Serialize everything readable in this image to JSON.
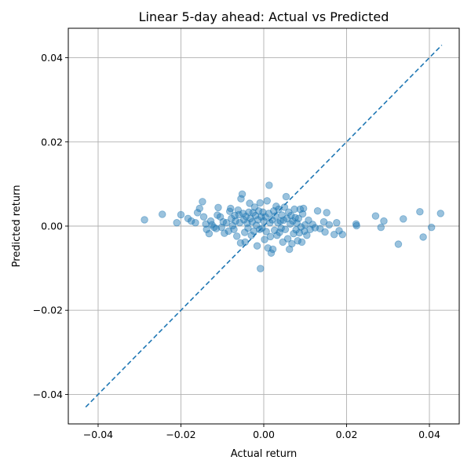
{
  "chart_data": {
    "type": "scatter",
    "title": "Linear 5-day ahead: Actual vs Predicted",
    "xlabel": "Actual return",
    "ylabel": "Predicted return",
    "xlim": [
      -0.0472,
      0.0472
    ],
    "ylim": [
      -0.047,
      0.047
    ],
    "xticks": [
      -0.04,
      -0.02,
      0.0,
      0.02,
      0.04
    ],
    "yticks": [
      -0.04,
      -0.02,
      0.0,
      0.02,
      0.04
    ],
    "xtick_labels": [
      "−0.04",
      "−0.02",
      "0.00",
      "0.02",
      "0.04"
    ],
    "ytick_labels": [
      "−0.04",
      "−0.02",
      "0.00",
      "0.02",
      "0.04"
    ],
    "grid": true,
    "point_color": "#1f77b4",
    "point_alpha": 0.45,
    "reference_line": {
      "style": "dashed",
      "color": "#1f77b4",
      "from": [
        -0.043,
        -0.043
      ],
      "to": [
        0.043,
        0.043
      ]
    },
    "series": [
      {
        "points": [
          [
            -0.0288,
            0.0015
          ],
          [
            -0.0245,
            0.0028
          ],
          [
            -0.021,
            0.0008
          ],
          [
            -0.02,
            0.0027
          ],
          [
            -0.0183,
            0.0018
          ],
          [
            -0.0175,
            0.0012
          ],
          [
            -0.0165,
            0.0008
          ],
          [
            -0.016,
            0.0032
          ],
          [
            -0.0155,
            0.0042
          ],
          [
            -0.0148,
            0.0058
          ],
          [
            -0.0145,
            0.0022
          ],
          [
            -0.014,
            0.0005
          ],
          [
            -0.0138,
            -0.0008
          ],
          [
            -0.0132,
            -0.0018
          ],
          [
            -0.0128,
            0.0012
          ],
          [
            -0.0125,
            0.0003
          ],
          [
            -0.012,
            -0.0003
          ],
          [
            -0.0115,
            -0.0006
          ],
          [
            -0.0112,
            0.0026
          ],
          [
            -0.011,
            0.0044
          ],
          [
            -0.0105,
            0.0022
          ],
          [
            -0.0102,
            -0.0003
          ],
          [
            -0.0098,
            0.001
          ],
          [
            -0.0095,
            -0.0017
          ],
          [
            -0.009,
            0.0008
          ],
          [
            -0.0085,
            -0.0012
          ],
          [
            -0.0082,
            0.0035
          ],
          [
            -0.008,
            0.0042
          ],
          [
            -0.0078,
            0.0018
          ],
          [
            -0.0075,
            0.0001
          ],
          [
            -0.0072,
            -0.0008
          ],
          [
            -0.007,
            0.0025
          ],
          [
            -0.0068,
            0.0012
          ],
          [
            -0.0065,
            -0.0024
          ],
          [
            -0.0062,
            0.0038
          ],
          [
            -0.006,
            0.0027
          ],
          [
            -0.0058,
            0.0008
          ],
          [
            -0.0056,
            -0.004
          ],
          [
            -0.0055,
            0.0065
          ],
          [
            -0.0052,
            0.0076
          ],
          [
            -0.005,
            0.003
          ],
          [
            -0.0048,
            0.0015
          ],
          [
            -0.0046,
            -0.0015
          ],
          [
            -0.0045,
            -0.0038
          ],
          [
            -0.0043,
            0.0023
          ],
          [
            -0.004,
            0.0007
          ],
          [
            -0.0038,
            -0.0005
          ],
          [
            -0.0036,
            0.0033
          ],
          [
            -0.0034,
            0.0054
          ],
          [
            -0.0032,
            0.0018
          ],
          [
            -0.003,
            -0.0022
          ],
          [
            -0.0028,
            0.001
          ],
          [
            -0.0026,
            0.0032
          ],
          [
            -0.0024,
            -0.0012
          ],
          [
            -0.0022,
            0.0045
          ],
          [
            -0.002,
            0.0025
          ],
          [
            -0.0018,
            0.0002
          ],
          [
            -0.0016,
            -0.0047
          ],
          [
            -0.0014,
            0.0015
          ],
          [
            -0.0012,
            0.0036
          ],
          [
            -0.001,
            -0.0008
          ],
          [
            -0.0009,
            0.0055
          ],
          [
            -0.0008,
            -0.0101
          ],
          [
            -0.0006,
            0.0022
          ],
          [
            -0.0004,
            -0.0005
          ],
          [
            -0.0002,
            0.0033
          ],
          [
            0.0,
            0.0012
          ],
          [
            0.0002,
            -0.0032
          ],
          [
            0.0004,
            0.0022
          ],
          [
            0.0006,
            -0.0013
          ],
          [
            0.0008,
            0.006
          ],
          [
            0.001,
            -0.0052
          ],
          [
            0.0012,
            0.003
          ],
          [
            0.0013,
            0.0097
          ],
          [
            0.0015,
            0.0008
          ],
          [
            0.0016,
            -0.0025
          ],
          [
            0.0018,
            -0.0064
          ],
          [
            0.002,
            0.0015
          ],
          [
            0.0022,
            -0.0055
          ],
          [
            0.0024,
            0.0036
          ],
          [
            0.0026,
            -0.001
          ],
          [
            0.0028,
            0.0024
          ],
          [
            0.003,
            0.0047
          ],
          [
            0.0032,
            -0.0022
          ],
          [
            0.0034,
            0.0008
          ],
          [
            0.0036,
            0.004
          ],
          [
            0.0038,
            -0.0015
          ],
          [
            0.004,
            0.0012
          ],
          [
            0.0042,
            -0.0005
          ],
          [
            0.0044,
            0.0026
          ],
          [
            0.0046,
            -0.0038
          ],
          [
            0.0048,
            0.0014
          ],
          [
            0.005,
            0.0045
          ],
          [
            0.0052,
            -0.0008
          ],
          [
            0.0054,
            0.007
          ],
          [
            0.0056,
            0.0018
          ],
          [
            0.0058,
            -0.003
          ],
          [
            0.006,
            0.0033
          ],
          [
            0.0062,
            -0.0055
          ],
          [
            0.0064,
            0.0005
          ],
          [
            0.0066,
            0.0025
          ],
          [
            0.0068,
            -0.0042
          ],
          [
            0.007,
            0.0012
          ],
          [
            0.0072,
            -0.0018
          ],
          [
            0.0074,
            0.004
          ],
          [
            0.0076,
            0.002
          ],
          [
            0.0078,
            -0.0009
          ],
          [
            0.008,
            0.0007
          ],
          [
            0.0082,
            -0.0035
          ],
          [
            0.0084,
            0.0018
          ],
          [
            0.0086,
            -0.0016
          ],
          [
            0.0088,
            0.004
          ],
          [
            0.009,
            -0.0002
          ],
          [
            0.0092,
            -0.0038
          ],
          [
            0.0094,
            0.0029
          ],
          [
            0.0096,
            0.0042
          ],
          [
            0.0098,
            -0.0012
          ],
          [
            0.01,
            0.0003
          ],
          [
            0.0104,
            -0.0022
          ],
          [
            0.0108,
            0.0014
          ],
          [
            0.0112,
            -0.0008
          ],
          [
            0.0118,
            0.0004
          ],
          [
            0.0124,
            -0.0004
          ],
          [
            0.013,
            0.0036
          ],
          [
            0.0136,
            -0.0006
          ],
          [
            0.0145,
            0.001
          ],
          [
            0.0148,
            -0.0014
          ],
          [
            0.0152,
            0.0032
          ],
          [
            0.0158,
            0.0003
          ],
          [
            0.017,
            -0.002
          ],
          [
            0.0176,
            0.0008
          ],
          [
            0.0182,
            -0.0011
          ],
          [
            0.019,
            -0.002
          ],
          [
            0.0223,
            0.0005
          ],
          [
            0.0224,
            0.0001
          ],
          [
            0.027,
            0.0024
          ],
          [
            0.0283,
            -0.0003
          ],
          [
            0.029,
            0.0012
          ],
          [
            0.0325,
            -0.0043
          ],
          [
            0.0337,
            0.0017
          ],
          [
            0.0377,
            0.0034
          ],
          [
            0.0385,
            -0.0026
          ],
          [
            0.0405,
            -0.0003
          ],
          [
            0.0427,
            0.003
          ]
        ]
      }
    ]
  }
}
